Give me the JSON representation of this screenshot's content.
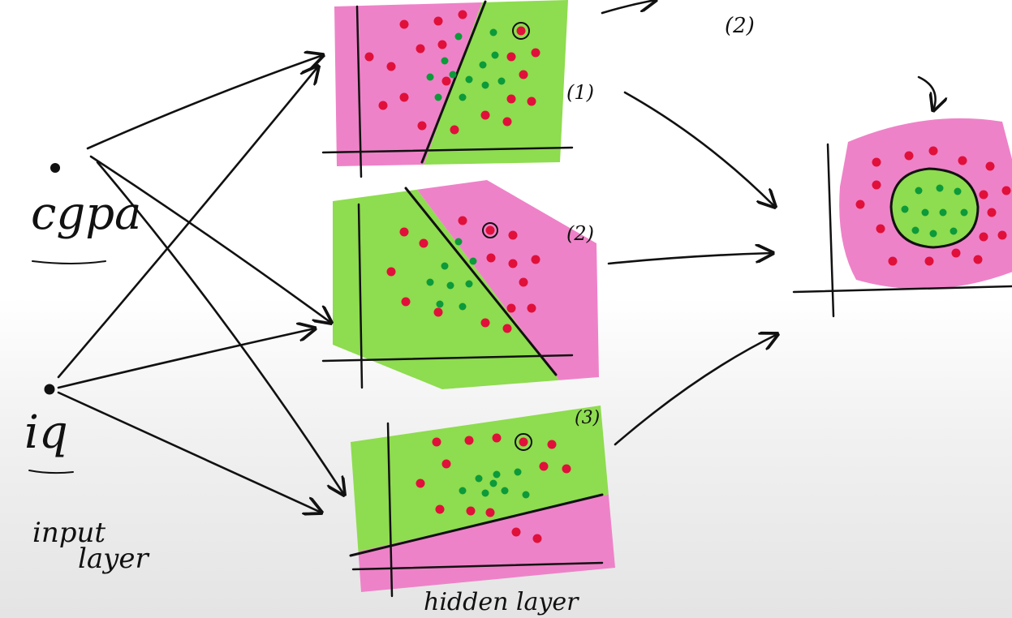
{
  "labels": {
    "cgpa": "cgpa",
    "iq": "iq",
    "input_layer_line1": "input",
    "input_layer_line2": "layer",
    "hidden_layer": "hidden layer",
    "plot1_tag": "(1)",
    "plot2_tag": "(2)",
    "plot3_tag": "(3)",
    "top_tag": "(2)"
  },
  "colors": {
    "pink": "#ee82c8",
    "green": "#8edc4f",
    "red_dot": "#e0103a",
    "green_dot": "#0c9a3a",
    "ink": "#111111"
  }
}
